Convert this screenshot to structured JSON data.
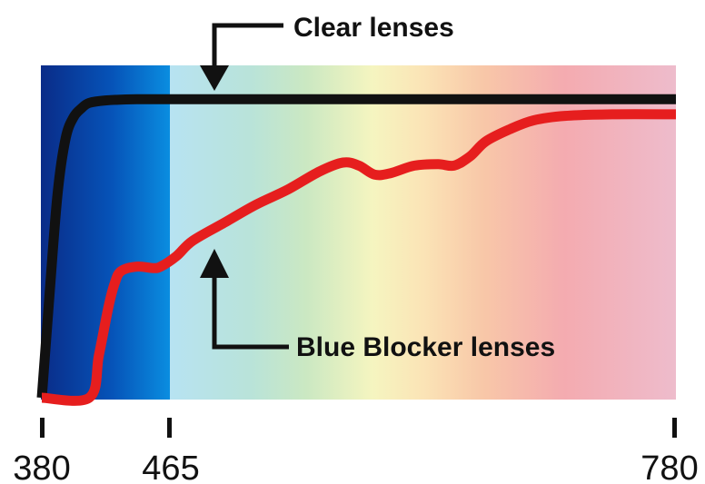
{
  "chart_data": {
    "type": "line",
    "xlabel": "",
    "ylabel": "",
    "xlim": [
      380,
      780
    ],
    "ylim": [
      0,
      100
    ],
    "xticks": [
      380,
      465,
      780
    ],
    "grid": false,
    "legend": "none",
    "background": "visible light spectrum gradient",
    "series": [
      {
        "name": "Clear lenses",
        "color": "#111111",
        "x": [
          380,
          385,
          390,
          395,
          400,
          405,
          410,
          420,
          440,
          465,
          500,
          600,
          700,
          780
        ],
        "y": [
          0,
          35,
          68,
          86,
          93,
          96,
          97.8,
          98.6,
          99,
          99,
          99,
          99,
          99,
          99
        ]
      },
      {
        "name": "Blue Blocker lenses",
        "color": "#e61e1e",
        "x": [
          380,
          410,
          416,
          422,
          426,
          430,
          440,
          450,
          455,
          465,
          475,
          495,
          515,
          535,
          555,
          570,
          580,
          590,
          600,
          615,
          630,
          640,
          650,
          660,
          675,
          690,
          710,
          740,
          780
        ],
        "y": [
          0,
          0,
          14,
          30,
          38,
          42,
          43.5,
          43,
          43.5,
          47,
          52,
          58,
          64,
          69,
          75,
          78,
          77,
          74,
          74.5,
          77,
          77.5,
          77,
          80,
          85,
          89,
          92,
          93.5,
          94,
          94
        ]
      }
    ]
  },
  "annotations": {
    "clear": "Clear lenses",
    "blue": "Blue Blocker lenses"
  }
}
